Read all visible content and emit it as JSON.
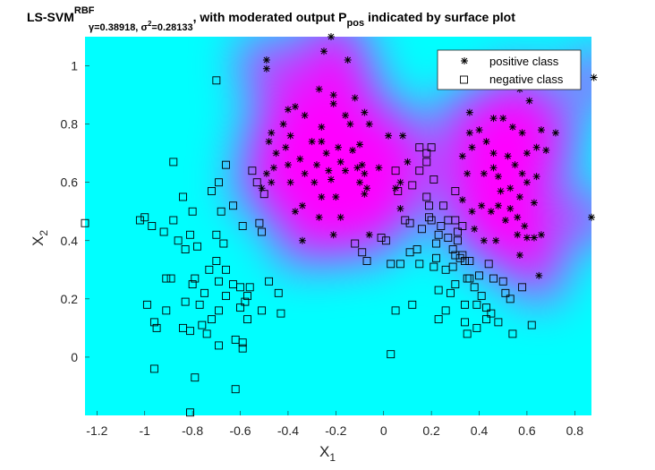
{
  "chart_data": {
    "type": "scatter",
    "title": {
      "main": "LS-SVM",
      "kernel_sup": "RBF",
      "params_sub": "γ=0.38918, σ²=0.28133",
      "gamma_sym": "γ",
      "gamma_val": "=0.38918, ",
      "sigma_sym": "σ",
      "sigma_exp": "2",
      "sigma_val": "=0.28133",
      "rest1": ", with moderated output P",
      "p_sub": "pos",
      "rest2": " indicated by surface plot"
    },
    "xlabel": {
      "base": "X",
      "sub": "1"
    },
    "ylabel": {
      "base": "X",
      "sub": "2"
    },
    "xlim": [
      -1.25,
      0.87
    ],
    "ylim": [
      -0.2,
      1.1
    ],
    "xticks": [
      -1.2,
      -1,
      -0.8,
      -0.6,
      -0.4,
      -0.2,
      0,
      0.2,
      0.4,
      0.6,
      0.8
    ],
    "xtick_labels": [
      "-1.2",
      "-1",
      "-0.8",
      "-0.6",
      "-0.4",
      "-0.2",
      "0",
      "0.2",
      "0.4",
      "0.6",
      "0.8"
    ],
    "yticks": [
      0,
      0.2,
      0.4,
      0.6,
      0.8,
      1
    ],
    "ytick_labels": [
      "0",
      "0.2",
      "0.4",
      "0.6",
      "0.8",
      "1"
    ],
    "legend_position": "top-right",
    "surface": {
      "negative_color": "#00ffff",
      "positive_color": "#ff00ff"
    },
    "series": [
      {
        "name": "positive class",
        "marker": "asterisk",
        "color": "#000000",
        "points": [
          [
            -0.22,
            1.1
          ],
          [
            -0.25,
            1.05
          ],
          [
            -0.49,
            1.02
          ],
          [
            -0.15,
            1.02
          ],
          [
            -0.49,
            0.99
          ],
          [
            0.88,
            0.96
          ],
          [
            -0.27,
            0.92
          ],
          [
            -0.21,
            0.9
          ],
          [
            -0.12,
            0.89
          ],
          [
            -0.37,
            0.86
          ],
          [
            -0.4,
            0.85
          ],
          [
            -0.33,
            0.83
          ],
          [
            -0.21,
            0.87
          ],
          [
            -0.16,
            0.83
          ],
          [
            -0.14,
            0.8
          ],
          [
            -0.08,
            0.84
          ],
          [
            -0.06,
            0.8
          ],
          [
            -0.26,
            0.79
          ],
          [
            -0.3,
            0.74
          ],
          [
            -0.26,
            0.74
          ],
          [
            -0.24,
            0.7
          ],
          [
            -0.19,
            0.72
          ],
          [
            -0.18,
            0.67
          ],
          [
            -0.13,
            0.71
          ],
          [
            -0.1,
            0.73
          ],
          [
            -0.16,
            0.64
          ],
          [
            -0.11,
            0.65
          ],
          [
            -0.39,
            0.76
          ],
          [
            -0.42,
            0.8
          ],
          [
            -0.41,
            0.72
          ],
          [
            -0.47,
            0.77
          ],
          [
            -0.45,
            0.7
          ],
          [
            -0.35,
            0.68
          ],
          [
            -0.28,
            0.66
          ],
          [
            -0.33,
            0.63
          ],
          [
            -0.29,
            0.6
          ],
          [
            -0.23,
            0.64
          ],
          [
            -0.26,
            0.55
          ],
          [
            -0.22,
            0.61
          ],
          [
            -0.2,
            0.55
          ],
          [
            -0.48,
            0.74
          ],
          [
            -0.49,
            0.63
          ],
          [
            -0.46,
            0.65
          ],
          [
            -0.4,
            0.66
          ],
          [
            -0.39,
            0.6
          ],
          [
            -0.47,
            0.6
          ],
          [
            -0.51,
            0.58
          ],
          [
            -0.37,
            0.5
          ],
          [
            -0.34,
            0.52
          ],
          [
            -0.27,
            0.48
          ],
          [
            -0.09,
            0.66
          ],
          [
            -0.08,
            0.63
          ],
          [
            -0.1,
            0.6
          ],
          [
            -0.07,
            0.58
          ],
          [
            -0.08,
            0.56
          ],
          [
            -0.02,
            0.65
          ],
          [
            0.02,
            0.76
          ],
          [
            -0.18,
            0.48
          ],
          [
            -0.34,
            0.4
          ],
          [
            -0.21,
            0.42
          ],
          [
            -0.06,
            0.42
          ],
          [
            0.08,
            0.76
          ],
          [
            0.1,
            0.67
          ],
          [
            0.07,
            0.6
          ],
          [
            0.05,
            0.58
          ],
          [
            0.07,
            0.51
          ],
          [
            0.57,
            0.92
          ],
          [
            0.61,
            0.88
          ],
          [
            0.36,
            0.84
          ],
          [
            0.46,
            0.82
          ],
          [
            0.5,
            0.82
          ],
          [
            0.54,
            0.79
          ],
          [
            0.58,
            0.77
          ],
          [
            0.66,
            0.78
          ],
          [
            0.72,
            0.77
          ],
          [
            0.36,
            0.77
          ],
          [
            0.4,
            0.78
          ],
          [
            0.43,
            0.74
          ],
          [
            0.37,
            0.72
          ],
          [
            0.46,
            0.7
          ],
          [
            0.52,
            0.69
          ],
          [
            0.6,
            0.7
          ],
          [
            0.55,
            0.66
          ],
          [
            0.64,
            0.72
          ],
          [
            0.68,
            0.71
          ],
          [
            0.33,
            0.69
          ],
          [
            0.35,
            0.63
          ],
          [
            0.42,
            0.63
          ],
          [
            0.46,
            0.65
          ],
          [
            0.48,
            0.62
          ],
          [
            0.58,
            0.63
          ],
          [
            0.6,
            0.6
          ],
          [
            0.53,
            0.58
          ],
          [
            0.49,
            0.57
          ],
          [
            0.64,
            0.62
          ],
          [
            0.33,
            0.54
          ],
          [
            0.37,
            0.5
          ],
          [
            0.41,
            0.52
          ],
          [
            0.45,
            0.5
          ],
          [
            0.48,
            0.52
          ],
          [
            0.53,
            0.51
          ],
          [
            0.57,
            0.55
          ],
          [
            0.63,
            0.53
          ],
          [
            0.51,
            0.47
          ],
          [
            0.56,
            0.48
          ],
          [
            0.59,
            0.45
          ],
          [
            0.38,
            0.44
          ],
          [
            0.56,
            0.42
          ],
          [
            0.6,
            0.41
          ],
          [
            0.63,
            0.41
          ],
          [
            0.66,
            0.42
          ],
          [
            0.42,
            0.4
          ],
          [
            0.47,
            0.4
          ],
          [
            0.57,
            0.35
          ],
          [
            0.87,
            0.48
          ],
          [
            0.65,
            0.28
          ]
        ]
      },
      {
        "name": "negative class",
        "marker": "square",
        "color": "#000000",
        "points": [
          [
            -0.7,
            0.95
          ],
          [
            -1.25,
            0.46
          ],
          [
            -0.88,
            0.67
          ],
          [
            -0.66,
            0.66
          ],
          [
            -0.55,
            0.64
          ],
          [
            -0.53,
            0.6
          ],
          [
            -0.5,
            0.56
          ],
          [
            -0.52,
            0.46
          ],
          [
            -0.51,
            0.43
          ],
          [
            -0.84,
            0.55
          ],
          [
            -0.69,
            0.6
          ],
          [
            -0.72,
            0.57
          ],
          [
            -0.63,
            0.52
          ],
          [
            -0.59,
            0.45
          ],
          [
            -0.68,
            0.5
          ],
          [
            -0.8,
            0.5
          ],
          [
            -0.88,
            0.47
          ],
          [
            -1.0,
            0.48
          ],
          [
            -0.97,
            0.45
          ],
          [
            -1.02,
            0.47
          ],
          [
            -0.92,
            0.43
          ],
          [
            -0.86,
            0.4
          ],
          [
            -0.81,
            0.42
          ],
          [
            -0.7,
            0.42
          ],
          [
            -0.67,
            0.39
          ],
          [
            -0.78,
            0.38
          ],
          [
            -0.83,
            0.37
          ],
          [
            -0.7,
            0.33
          ],
          [
            -0.73,
            0.3
          ],
          [
            -0.89,
            0.27
          ],
          [
            -0.91,
            0.27
          ],
          [
            -0.79,
            0.27
          ],
          [
            -0.8,
            0.25
          ],
          [
            -0.69,
            0.26
          ],
          [
            -0.66,
            0.3
          ],
          [
            -0.63,
            0.25
          ],
          [
            -0.56,
            0.24
          ],
          [
            -0.48,
            0.26
          ],
          [
            -0.6,
            0.24
          ],
          [
            -0.66,
            0.21
          ],
          [
            -0.57,
            0.21
          ],
          [
            -0.44,
            0.22
          ],
          [
            -0.58,
            0.19
          ],
          [
            -0.75,
            0.22
          ],
          [
            -0.83,
            0.19
          ],
          [
            -0.91,
            0.16
          ],
          [
            -0.99,
            0.18
          ],
          [
            -0.77,
            0.18
          ],
          [
            -0.69,
            0.16
          ],
          [
            -0.6,
            0.17
          ],
          [
            -0.72,
            0.13
          ],
          [
            -0.84,
            0.1
          ],
          [
            -0.76,
            0.11
          ],
          [
            -0.95,
            0.1
          ],
          [
            -0.96,
            0.12
          ],
          [
            -0.81,
            0.09
          ],
          [
            -0.74,
            0.08
          ],
          [
            -0.57,
            0.13
          ],
          [
            -0.51,
            0.16
          ],
          [
            -0.43,
            0.15
          ],
          [
            -0.62,
            0.06
          ],
          [
            -0.59,
            0.05
          ],
          [
            -0.69,
            0.04
          ],
          [
            -0.96,
            -0.04
          ],
          [
            -0.79,
            -0.07
          ],
          [
            -0.62,
            -0.11
          ],
          [
            -0.81,
            -0.19
          ],
          [
            -0.59,
            0.03
          ],
          [
            0.15,
            0.72
          ],
          [
            0.2,
            0.72
          ],
          [
            0.18,
            0.7
          ],
          [
            0.18,
            0.67
          ],
          [
            0.15,
            0.64
          ],
          [
            0.05,
            0.64
          ],
          [
            0.12,
            0.59
          ],
          [
            0.06,
            0.57
          ],
          [
            0.21,
            0.61
          ],
          [
            0.3,
            0.57
          ],
          [
            0.18,
            0.55
          ],
          [
            0.19,
            0.52
          ],
          [
            0.25,
            0.52
          ],
          [
            0.2,
            0.47
          ],
          [
            0.09,
            0.47
          ],
          [
            0.11,
            0.46
          ],
          [
            0.19,
            0.48
          ],
          [
            0.27,
            0.47
          ],
          [
            0.24,
            0.45
          ],
          [
            0.3,
            0.47
          ],
          [
            0.33,
            0.45
          ],
          [
            0.16,
            0.44
          ],
          [
            0.23,
            0.42
          ],
          [
            0.31,
            0.43
          ],
          [
            0.27,
            0.41
          ],
          [
            -0.01,
            0.41
          ],
          [
            0.01,
            0.4
          ],
          [
            0.22,
            0.39
          ],
          [
            0.31,
            0.4
          ],
          [
            0.29,
            0.37
          ],
          [
            -0.12,
            0.39
          ],
          [
            -0.09,
            0.36
          ],
          [
            -0.07,
            0.33
          ],
          [
            0.14,
            0.37
          ],
          [
            0.11,
            0.36
          ],
          [
            0.3,
            0.35
          ],
          [
            0.22,
            0.34
          ],
          [
            0.33,
            0.35
          ],
          [
            0.32,
            0.34
          ],
          [
            0.34,
            0.33
          ],
          [
            0.36,
            0.33
          ],
          [
            0.44,
            0.32
          ],
          [
            0.15,
            0.32
          ],
          [
            0.03,
            0.32
          ],
          [
            0.07,
            0.32
          ],
          [
            0.21,
            0.31
          ],
          [
            0.26,
            0.3
          ],
          [
            0.29,
            0.31
          ],
          [
            0.4,
            0.28
          ],
          [
            0.35,
            0.27
          ],
          [
            0.36,
            0.27
          ],
          [
            0.46,
            0.27
          ],
          [
            0.5,
            0.26
          ],
          [
            0.58,
            0.24
          ],
          [
            0.23,
            0.23
          ],
          [
            0.28,
            0.22
          ],
          [
            0.3,
            0.25
          ],
          [
            0.38,
            0.24
          ],
          [
            0.41,
            0.21
          ],
          [
            0.51,
            0.22
          ],
          [
            0.53,
            0.2
          ],
          [
            0.34,
            0.18
          ],
          [
            0.39,
            0.18
          ],
          [
            0.43,
            0.17
          ],
          [
            0.45,
            0.15
          ],
          [
            0.48,
            0.12
          ],
          [
            0.12,
            0.18
          ],
          [
            0.05,
            0.16
          ],
          [
            0.34,
            0.12
          ],
          [
            0.43,
            0.13
          ],
          [
            0.39,
            0.1
          ],
          [
            0.23,
            0.13
          ],
          [
            0.26,
            0.16
          ],
          [
            0.62,
            0.11
          ],
          [
            0.35,
            0.08
          ],
          [
            0.54,
            0.08
          ],
          [
            0.03,
            0.01
          ]
        ]
      }
    ]
  }
}
